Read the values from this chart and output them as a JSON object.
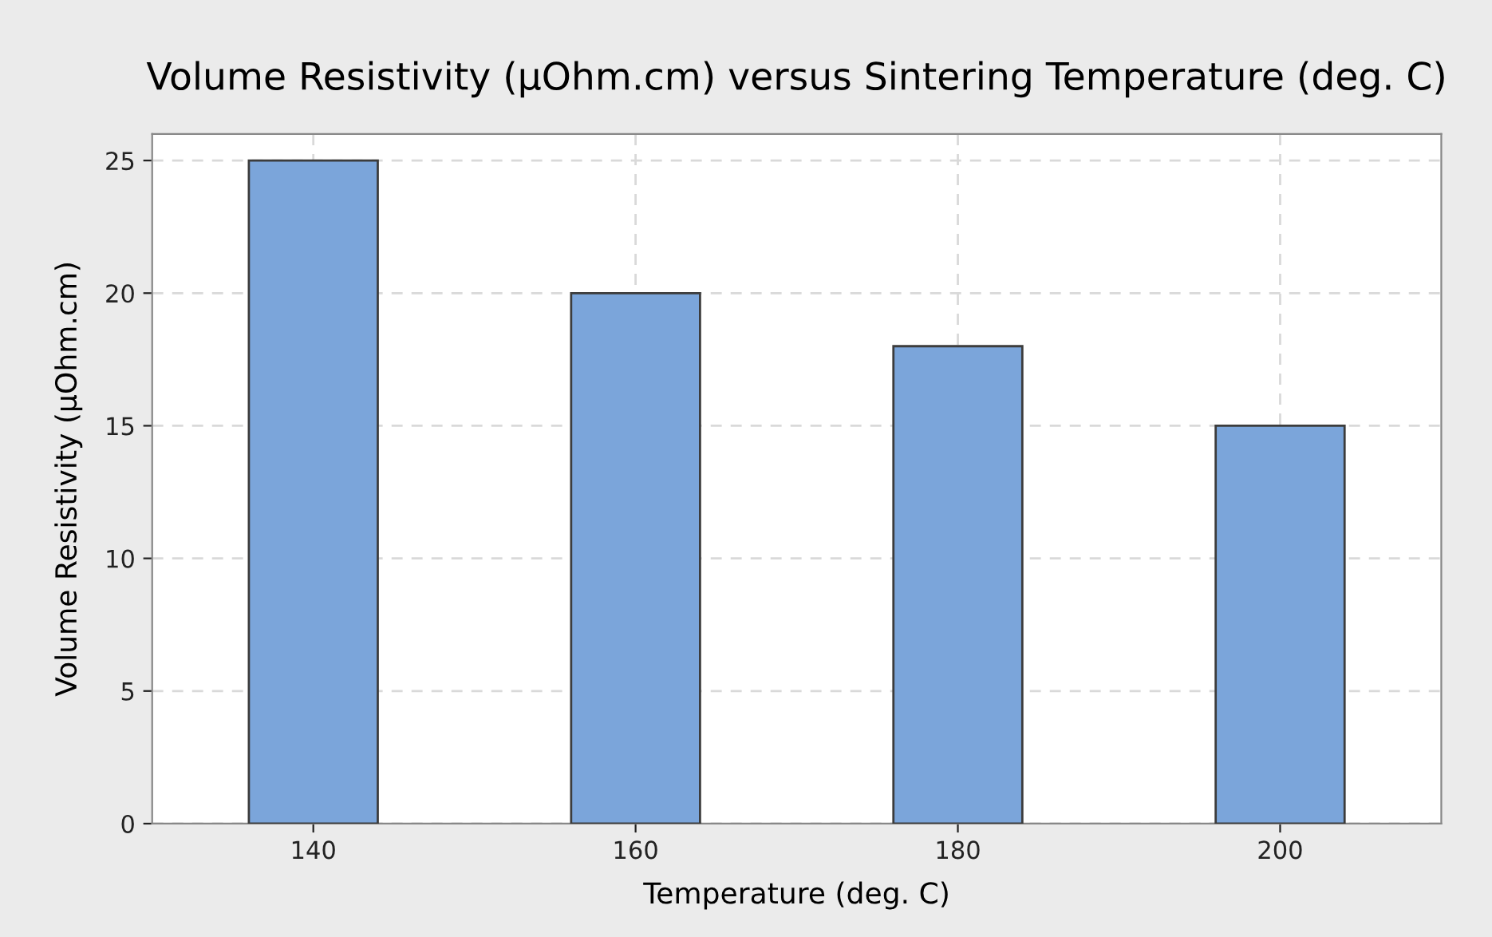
{
  "chart_data": {
    "type": "bar",
    "title": "Volume Resistivity (µOhm.cm) versus Sintering Temperature (deg. C)",
    "xlabel": "Temperature (deg. C)",
    "ylabel": "Volume Resistivity (µOhm.cm)",
    "categories": [
      "140",
      "160",
      "180",
      "200"
    ],
    "values": [
      25,
      20,
      18,
      15
    ],
    "color": "#7ba5da",
    "ylim": [
      0,
      26
    ],
    "yticks": [
      0,
      5,
      10,
      15,
      20,
      25
    ],
    "grid": true,
    "legend": false
  }
}
